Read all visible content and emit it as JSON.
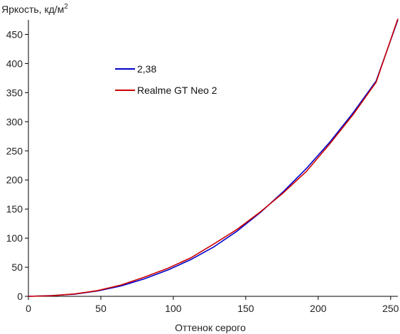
{
  "chart_data": {
    "type": "line",
    "title": "",
    "ylabel": "Яркость, кд/м",
    "ylabel_sup": "2",
    "xlabel": "Оттенок серого",
    "xlim": [
      0,
      255
    ],
    "ylim": [
      0,
      475
    ],
    "xticks": [
      0,
      50,
      100,
      150,
      200,
      250
    ],
    "yticks": [
      0,
      50,
      100,
      150,
      200,
      250,
      300,
      350,
      400,
      450
    ],
    "legend_position": "upper-left",
    "grid": false,
    "series": [
      {
        "name": "2,38",
        "color": "#0000cc",
        "x": [
          0,
          16,
          32,
          48,
          64,
          80,
          96,
          112,
          128,
          144,
          160,
          176,
          192,
          208,
          224,
          240,
          255
        ],
        "y": [
          0,
          1.3,
          3.8,
          9.4,
          18.0,
          30.0,
          45.0,
          63.0,
          85.0,
          112.0,
          144.0,
          180.0,
          220.0,
          265.0,
          315.0,
          370.0,
          475.0
        ]
      },
      {
        "name": "Realme GT Neo 2",
        "color": "#cc0000",
        "x": [
          0,
          16,
          32,
          48,
          64,
          80,
          96,
          112,
          128,
          144,
          160,
          176,
          192,
          208,
          224,
          240,
          255
        ],
        "y": [
          0,
          1.0,
          4.2,
          10.0,
          19.5,
          33.0,
          48.0,
          66.0,
          90.0,
          115.0,
          145.0,
          178.0,
          215.0,
          262.0,
          312.0,
          368.0,
          477.0
        ]
      }
    ]
  }
}
